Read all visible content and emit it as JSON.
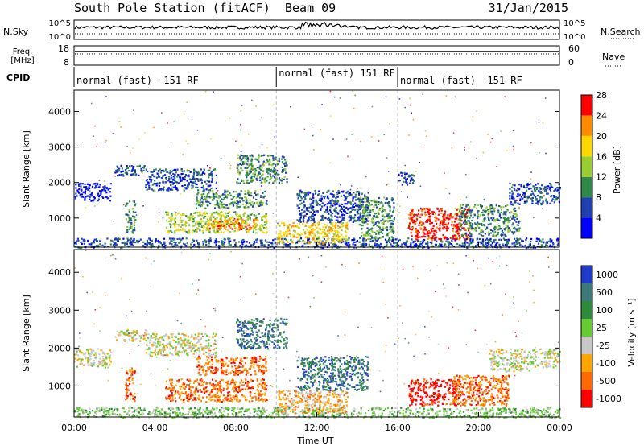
{
  "header": {
    "station": "South Pole Station (fitACF)",
    "beam": "Beam 09",
    "date": "31/Jan/2015"
  },
  "top_panels": {
    "nsky_label": "N.Sky",
    "nsky_ticks": [
      "10^5",
      "10^0"
    ],
    "nsearch_label": "N.Search",
    "nsearch_ticks": [
      "10^5",
      "10^0"
    ],
    "freq_label": "Freq.",
    "freq_unit": "[MHz]",
    "freq_ticks": [
      "18",
      "8"
    ],
    "nave_label": "Nave",
    "nave_ticks": [
      "60",
      "0"
    ],
    "cpid_label": "CPID",
    "cpid_segments": [
      {
        "label": "normal (fast) -151 RF",
        "start_hour": 0,
        "end_hour": 10
      },
      {
        "label": "normal (fast) 151 RF",
        "start_hour": 10,
        "end_hour": 16
      },
      {
        "label": "normal (fast) -151 RF",
        "start_hour": 16,
        "end_hour": 24
      }
    ]
  },
  "chart_data": [
    {
      "type": "heatmap",
      "quantity": "Power",
      "ylabel": "Slant Range [km]",
      "xlabel": "Time UT",
      "xlim": [
        0,
        24
      ],
      "ylim": [
        180,
        4600
      ],
      "yticks": [
        "1000",
        "2000",
        "3000",
        "4000"
      ],
      "colorbar_label": "Power [dB]",
      "colorbar_ticks": [
        "4",
        "8",
        "12",
        "16",
        "20",
        "24",
        "28"
      ],
      "colorbar_colors": [
        "#0000ff",
        "#1e40b0",
        "#2f8a4a",
        "#9acd32",
        "#ffd700",
        "#ff8c00",
        "#ff0000"
      ],
      "regions": [
        {
          "t0": 0.0,
          "t1": 24.0,
          "r0": 180,
          "r1": 450,
          "level": 1
        },
        {
          "t0": 0.0,
          "t1": 1.8,
          "r0": 1500,
          "r1": 2000,
          "level": 0
        },
        {
          "t0": 2.0,
          "t1": 3.5,
          "r0": 2200,
          "r1": 2500,
          "level": 1
        },
        {
          "t0": 2.5,
          "t1": 3.0,
          "r0": 600,
          "r1": 1500,
          "level": 2
        },
        {
          "t0": 3.5,
          "t1": 7.0,
          "r0": 1800,
          "r1": 2400,
          "level": 1
        },
        {
          "t0": 4.5,
          "t1": 9.5,
          "r0": 600,
          "r1": 1200,
          "level": 3
        },
        {
          "t0": 6.5,
          "t1": 9.0,
          "r0": 700,
          "r1": 1000,
          "level": 5
        },
        {
          "t0": 6.0,
          "t1": 9.5,
          "r0": 1300,
          "r1": 1800,
          "level": 2
        },
        {
          "t0": 8.0,
          "t1": 10.5,
          "r0": 2000,
          "r1": 2800,
          "level": 2
        },
        {
          "t0": 10.0,
          "t1": 13.5,
          "r0": 300,
          "r1": 900,
          "level": 4
        },
        {
          "t0": 11.0,
          "t1": 14.5,
          "r0": 900,
          "r1": 1800,
          "level": 1
        },
        {
          "t0": 14.0,
          "t1": 15.8,
          "r0": 400,
          "r1": 1600,
          "level": 2
        },
        {
          "t0": 16.5,
          "t1": 19.5,
          "r0": 400,
          "r1": 1300,
          "level": 6
        },
        {
          "t0": 19.0,
          "t1": 22.0,
          "r0": 500,
          "r1": 1400,
          "level": 2
        },
        {
          "t0": 21.5,
          "t1": 24.0,
          "r0": 1400,
          "r1": 2000,
          "level": 1
        },
        {
          "t0": 16.0,
          "t1": 16.8,
          "r0": 1900,
          "r1": 2300,
          "level": 1
        }
      ]
    },
    {
      "type": "heatmap",
      "quantity": "Velocity",
      "ylabel": "Slant Range [km]",
      "xlabel": "Time UT",
      "xlim": [
        0,
        24
      ],
      "ylim": [
        180,
        4600
      ],
      "yticks": [
        "1000",
        "2000",
        "3000",
        "4000"
      ],
      "xticks": [
        "00:00",
        "04:00",
        "08:00",
        "12:00",
        "16:00",
        "20:00",
        "00:00"
      ],
      "colorbar_label": "Velocity [m s⁻¹]",
      "colorbar_ticks": [
        "1000",
        "500",
        "100",
        "25",
        "-25",
        "-100",
        "-500",
        "-1000"
      ],
      "colorbar_colors": [
        "#1e3cc8",
        "#3d7a7a",
        "#2e8b3a",
        "#66cc33",
        "#c8c8c8",
        "#ffa500",
        "#ff6a00",
        "#ff0000"
      ],
      "regions": [
        {
          "t0": 0.0,
          "t1": 24.0,
          "r0": 180,
          "r1": 450,
          "level": 3
        },
        {
          "t0": 0.0,
          "t1": 1.8,
          "r0": 1500,
          "r1": 2000,
          "level": 4
        },
        {
          "t0": 2.0,
          "t1": 3.5,
          "r0": 2200,
          "r1": 2500,
          "level": 4
        },
        {
          "t0": 3.5,
          "t1": 7.0,
          "r0": 1800,
          "r1": 2400,
          "level": 4
        },
        {
          "t0": 4.5,
          "t1": 9.5,
          "r0": 600,
          "r1": 1200,
          "level": 6
        },
        {
          "t0": 6.0,
          "t1": 9.5,
          "r0": 1300,
          "r1": 1800,
          "level": 6
        },
        {
          "t0": 8.0,
          "t1": 10.5,
          "r0": 2000,
          "r1": 2800,
          "level": 1
        },
        {
          "t0": 10.0,
          "t1": 13.5,
          "r0": 300,
          "r1": 900,
          "level": 5
        },
        {
          "t0": 11.0,
          "t1": 14.5,
          "r0": 900,
          "r1": 1800,
          "level": 1
        },
        {
          "t0": 16.5,
          "t1": 19.0,
          "r0": 500,
          "r1": 1200,
          "level": 7
        },
        {
          "t0": 18.5,
          "t1": 21.5,
          "r0": 500,
          "r1": 1300,
          "level": 6
        },
        {
          "t0": 20.5,
          "t1": 22.5,
          "r0": 1400,
          "r1": 2000,
          "level": 4
        },
        {
          "t0": 22.5,
          "t1": 24.0,
          "r0": 1500,
          "r1": 2000,
          "level": 4
        },
        {
          "t0": 2.5,
          "t1": 3.0,
          "r0": 600,
          "r1": 1500,
          "level": 6
        }
      ]
    }
  ]
}
